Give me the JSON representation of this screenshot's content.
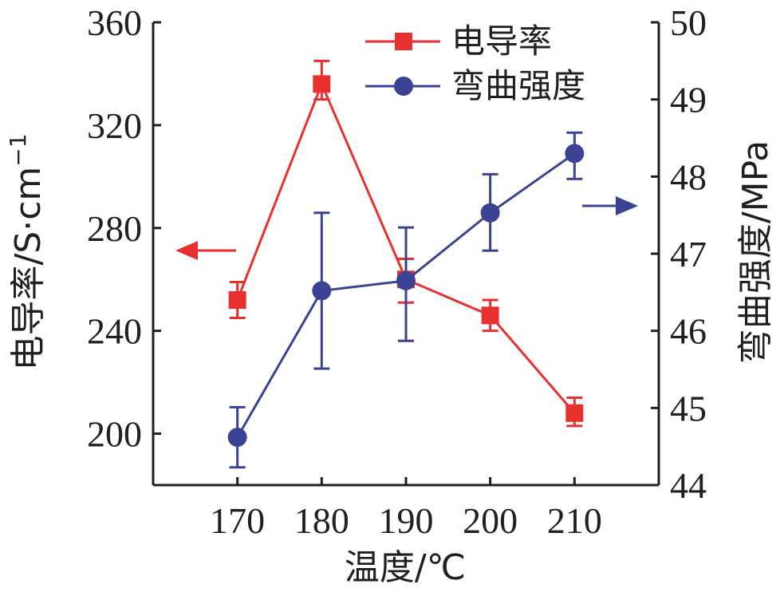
{
  "chart_data": {
    "type": "line",
    "x": [
      170,
      180,
      190,
      200,
      210
    ],
    "x_tick_labels": [
      "170",
      "180",
      "190",
      "200",
      "210"
    ],
    "xlabel": "温度/℃",
    "xlim": [
      160,
      220
    ],
    "y_left": {
      "label": "电导率/S·cm",
      "label_superscript": "−1",
      "lim": [
        180,
        360
      ],
      "ticks": [
        200,
        240,
        280,
        320,
        360
      ],
      "tick_labels": [
        "200",
        "240",
        "280",
        "320",
        "360"
      ]
    },
    "y_right": {
      "label": "弯曲强度/MPa",
      "lim": [
        44,
        50
      ],
      "ticks": [
        44,
        45,
        46,
        47,
        48,
        49,
        50
      ],
      "tick_labels": [
        "44",
        "45",
        "46",
        "47",
        "48",
        "49",
        "50"
      ]
    },
    "series": [
      {
        "name": "电导率",
        "axis": "left",
        "marker": "square",
        "color": "#e8312f",
        "values": [
          252,
          336,
          260,
          246,
          208
        ],
        "error_low": [
          245,
          330,
          251,
          240,
          203
        ],
        "error_high": [
          259,
          345,
          268,
          252,
          214
        ]
      },
      {
        "name": "弯曲强度",
        "axis": "right",
        "marker": "circle",
        "color": "#3a4393",
        "values": [
          44.62,
          46.52,
          46.65,
          47.53,
          48.3
        ],
        "error_low": [
          44.23,
          45.51,
          45.87,
          47.04,
          47.97
        ],
        "error_high": [
          45.01,
          47.53,
          47.34,
          48.03,
          48.57
        ]
      }
    ],
    "legend_position": "top-right",
    "annotations": [
      "left arrow points to left axis",
      "right arrow points to right axis"
    ],
    "grid": false
  }
}
